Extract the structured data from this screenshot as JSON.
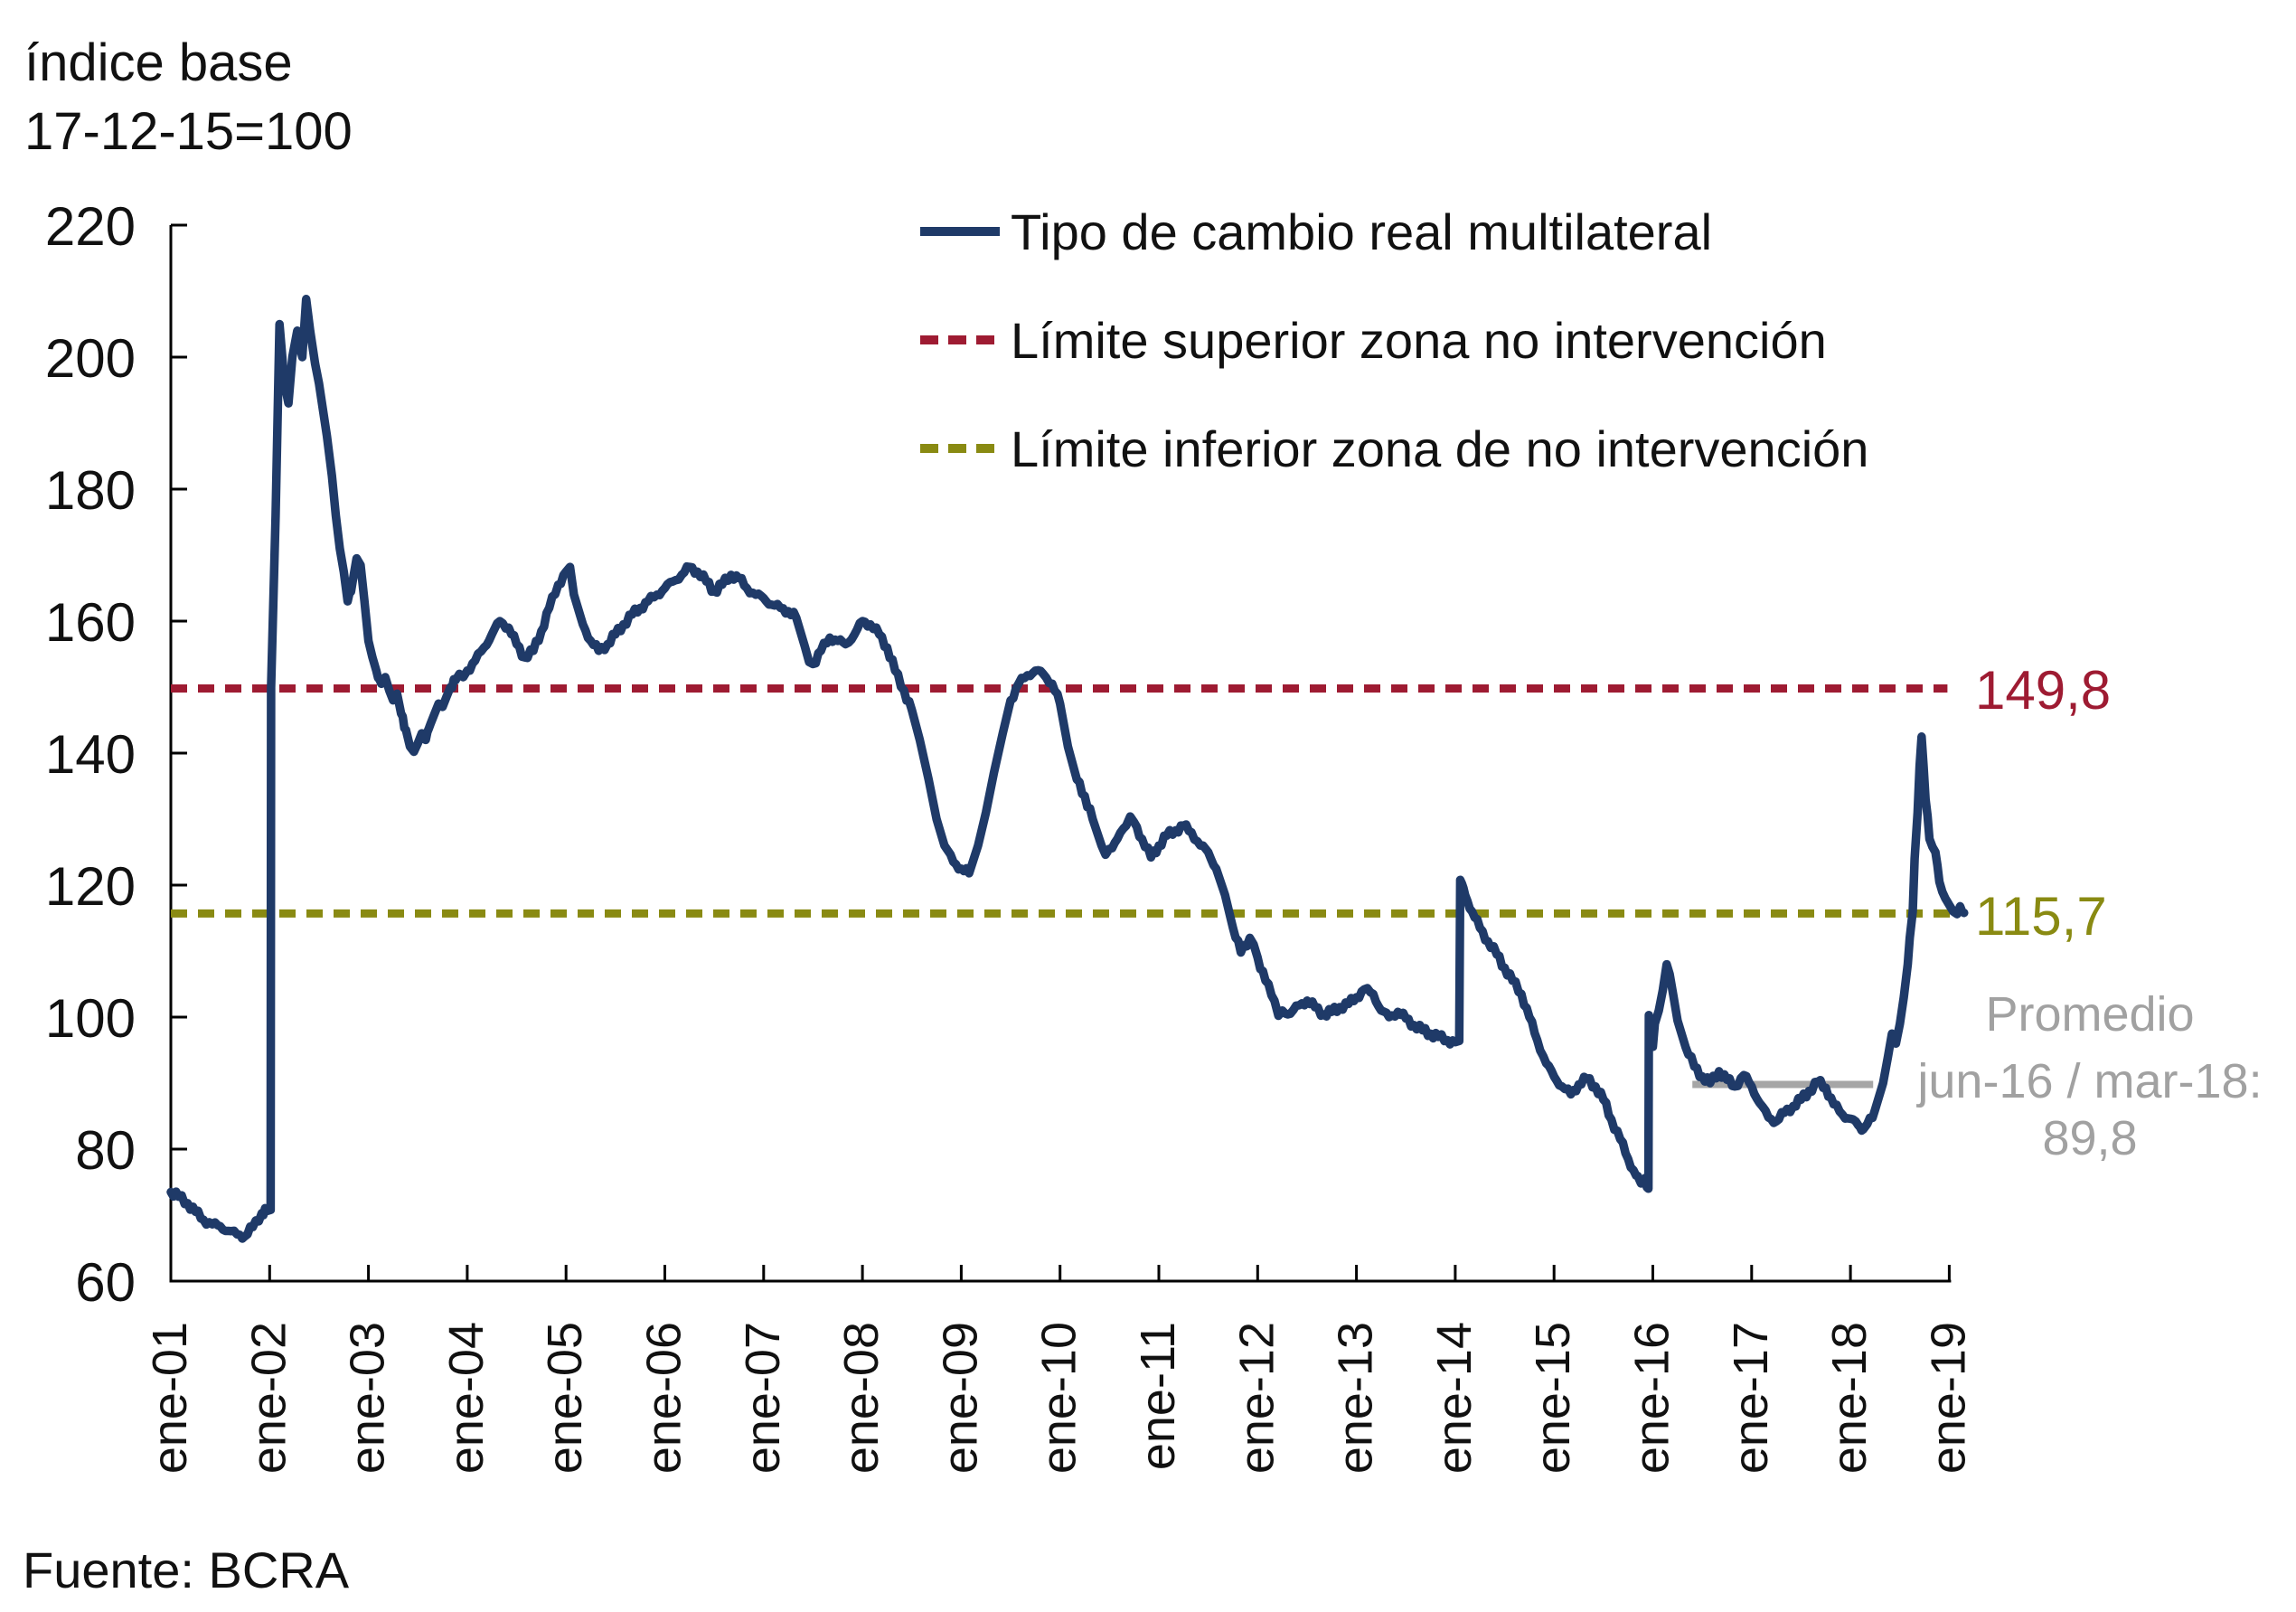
{
  "header": {
    "title_line1": "índice base",
    "title_line2": "17-12-15=100"
  },
  "legend": [
    {
      "label": "Tipo de cambio real multilateral",
      "color": "#1f3a68",
      "style": "solid"
    },
    {
      "label": "Límite superior zona no intervención",
      "color": "#9e1b32",
      "style": "dashed"
    },
    {
      "label": "Límite inferior zona de no intervención",
      "color": "#898a12",
      "style": "dashed"
    }
  ],
  "annotations": {
    "upper_limit_label": "149,8",
    "lower_limit_label": "115,7",
    "average_line1": "Promedio",
    "average_line2": "jun-16 / mar-18:",
    "average_line3": "89,8"
  },
  "source": "Fuente: BCRA",
  "colors": {
    "series": "#1f3a68",
    "upper_limit": "#9e1b32",
    "lower_limit": "#898a12",
    "average": "#a6a6a6",
    "axis": "#000000",
    "annotation_text": "#a1a1a1"
  },
  "chart_data": {
    "type": "line",
    "title": "índice base 17-12-15=100",
    "xlabel": "",
    "ylabel": "",
    "ylim": [
      60,
      220
    ],
    "grid": false,
    "legend_position": "top-center",
    "y_ticks": [
      60,
      80,
      100,
      120,
      140,
      160,
      180,
      200,
      220
    ],
    "x_ticklabels": [
      "ene-01",
      "ene-02",
      "ene-03",
      "ene-04",
      "ene-05",
      "ene-06",
      "ene-07",
      "ene-08",
      "ene-09",
      "ene-10",
      "ene-11",
      "ene-12",
      "ene-13",
      "ene-14",
      "ene-15",
      "ene-16",
      "ene-17",
      "ene-18",
      "ene-19"
    ],
    "x_tick_years": [
      2001,
      2002,
      2003,
      2004,
      2005,
      2006,
      2007,
      2008,
      2009,
      2010,
      2011,
      2012,
      2013,
      2014,
      2015,
      2016,
      2017,
      2018,
      2019
    ],
    "limits": {
      "upper": {
        "label": "Límite superior zona no intervención",
        "value": 149.8
      },
      "lower": {
        "label": "Límite inferior zona de no intervención",
        "value": 115.7
      }
    },
    "average_segment": {
      "label": "Promedio jun-16 / mar-18",
      "value": 89.8,
      "from_year": 2016.4,
      "to_year": 2018.23
    },
    "series": [
      {
        "name": "Tipo de cambio real multilateral",
        "points": [
          [
            2001.0,
            73.5
          ],
          [
            2001.08,
            72.8
          ],
          [
            2001.17,
            71.8
          ],
          [
            2001.25,
            70.5
          ],
          [
            2001.33,
            69.3
          ],
          [
            2001.42,
            68.6
          ],
          [
            2001.5,
            68.3
          ],
          [
            2001.58,
            67.6
          ],
          [
            2001.67,
            67.1
          ],
          [
            2001.75,
            66.8
          ],
          [
            2001.83,
            68.2
          ],
          [
            2001.92,
            70.3
          ],
          [
            2001.97,
            70.6
          ],
          [
            2002.01,
            70.8
          ],
          [
            2002.015,
            150
          ],
          [
            2002.06,
            176
          ],
          [
            2002.1,
            205
          ],
          [
            2002.15,
            196
          ],
          [
            2002.19,
            193
          ],
          [
            2002.23,
            200
          ],
          [
            2002.28,
            204
          ],
          [
            2002.33,
            200
          ],
          [
            2002.37,
            208.8
          ],
          [
            2002.41,
            204
          ],
          [
            2002.46,
            199
          ],
          [
            2002.5,
            196
          ],
          [
            2002.54,
            192
          ],
          [
            2002.58,
            188
          ],
          [
            2002.63,
            182
          ],
          [
            2002.67,
            176
          ],
          [
            2002.71,
            171
          ],
          [
            2002.75,
            167.5
          ],
          [
            2002.79,
            163
          ],
          [
            2002.84,
            166
          ],
          [
            2002.88,
            169.5
          ],
          [
            2002.92,
            168.5
          ],
          [
            2002.96,
            163
          ],
          [
            2003.0,
            157
          ],
          [
            2003.04,
            154.5
          ],
          [
            2003.08,
            152.5
          ],
          [
            2003.13,
            150.5
          ],
          [
            2003.17,
            151.5
          ],
          [
            2003.21,
            149.5
          ],
          [
            2003.25,
            148
          ],
          [
            2003.29,
            149
          ],
          [
            2003.33,
            146
          ],
          [
            2003.38,
            143.5
          ],
          [
            2003.42,
            141
          ],
          [
            2003.46,
            140.2
          ],
          [
            2003.5,
            141.5
          ],
          [
            2003.54,
            143
          ],
          [
            2003.58,
            142
          ],
          [
            2003.63,
            144.5
          ],
          [
            2003.67,
            146
          ],
          [
            2003.71,
            147.5
          ],
          [
            2003.75,
            147
          ],
          [
            2003.79,
            148.5
          ],
          [
            2003.83,
            150
          ],
          [
            2003.88,
            151
          ],
          [
            2003.92,
            152
          ],
          [
            2003.96,
            151.5
          ],
          [
            2004.0,
            152.5
          ],
          [
            2004.08,
            154
          ],
          [
            2004.17,
            156
          ],
          [
            2004.25,
            158
          ],
          [
            2004.33,
            160
          ],
          [
            2004.42,
            159
          ],
          [
            2004.5,
            156.5
          ],
          [
            2004.58,
            154.5
          ],
          [
            2004.67,
            155.5
          ],
          [
            2004.75,
            158.5
          ],
          [
            2004.83,
            162
          ],
          [
            2004.92,
            165.5
          ],
          [
            2005.0,
            167.5
          ],
          [
            2005.04,
            168.2
          ],
          [
            2005.08,
            164
          ],
          [
            2005.17,
            159.5
          ],
          [
            2005.25,
            157
          ],
          [
            2005.33,
            155.5
          ],
          [
            2005.42,
            156.5
          ],
          [
            2005.5,
            158
          ],
          [
            2005.58,
            159.5
          ],
          [
            2005.67,
            161
          ],
          [
            2005.75,
            162
          ],
          [
            2005.83,
            163
          ],
          [
            2005.92,
            164
          ],
          [
            2006.0,
            165
          ],
          [
            2006.08,
            166
          ],
          [
            2006.17,
            167
          ],
          [
            2006.25,
            168.2
          ],
          [
            2006.33,
            167.5
          ],
          [
            2006.42,
            166
          ],
          [
            2006.5,
            164.5
          ],
          [
            2006.58,
            165.5
          ],
          [
            2006.67,
            167
          ],
          [
            2006.75,
            166.5
          ],
          [
            2006.83,
            165
          ],
          [
            2006.92,
            164
          ],
          [
            2007.0,
            163.5
          ],
          [
            2007.08,
            162.5
          ],
          [
            2007.17,
            162
          ],
          [
            2007.25,
            161.5
          ],
          [
            2007.33,
            160.5
          ],
          [
            2007.42,
            156
          ],
          [
            2007.46,
            153.8
          ],
          [
            2007.5,
            153.5
          ],
          [
            2007.58,
            155.5
          ],
          [
            2007.67,
            157.5
          ],
          [
            2007.75,
            157
          ],
          [
            2007.83,
            156.5
          ],
          [
            2007.92,
            158
          ],
          [
            2008.0,
            160
          ],
          [
            2008.08,
            159.5
          ],
          [
            2008.17,
            158
          ],
          [
            2008.25,
            156
          ],
          [
            2008.33,
            152.5
          ],
          [
            2008.42,
            149.5
          ],
          [
            2008.5,
            146.5
          ],
          [
            2008.58,
            142
          ],
          [
            2008.67,
            136
          ],
          [
            2008.75,
            130
          ],
          [
            2008.83,
            126
          ],
          [
            2008.92,
            123.5
          ],
          [
            2009.0,
            122.5
          ],
          [
            2009.08,
            121.8
          ],
          [
            2009.17,
            126
          ],
          [
            2009.25,
            131
          ],
          [
            2009.33,
            137
          ],
          [
            2009.42,
            143
          ],
          [
            2009.5,
            148
          ],
          [
            2009.58,
            150.5
          ],
          [
            2009.67,
            151.8
          ],
          [
            2009.75,
            152.5
          ],
          [
            2009.83,
            152
          ],
          [
            2009.92,
            150.5
          ],
          [
            2010.0,
            147.5
          ],
          [
            2010.08,
            141
          ],
          [
            2010.17,
            136
          ],
          [
            2010.25,
            133.5
          ],
          [
            2010.33,
            130
          ],
          [
            2010.42,
            126
          ],
          [
            2010.46,
            124.6
          ],
          [
            2010.5,
            125.5
          ],
          [
            2010.58,
            127
          ],
          [
            2010.67,
            129
          ],
          [
            2010.71,
            130.4
          ],
          [
            2010.75,
            129.5
          ],
          [
            2010.83,
            127
          ],
          [
            2010.92,
            124.2
          ],
          [
            2011.0,
            126
          ],
          [
            2011.08,
            127.5
          ],
          [
            2011.17,
            128.3
          ],
          [
            2011.25,
            129
          ],
          [
            2011.33,
            128
          ],
          [
            2011.42,
            126
          ],
          [
            2011.5,
            125
          ],
          [
            2011.58,
            122.5
          ],
          [
            2011.67,
            118.5
          ],
          [
            2011.75,
            113.5
          ],
          [
            2011.83,
            109.8
          ],
          [
            2011.92,
            112
          ],
          [
            2011.96,
            111
          ],
          [
            2012.0,
            109
          ],
          [
            2012.08,
            105.5
          ],
          [
            2012.17,
            102.5
          ],
          [
            2012.21,
            100.2
          ],
          [
            2012.25,
            101
          ],
          [
            2012.33,
            100.5
          ],
          [
            2012.42,
            101.8
          ],
          [
            2012.5,
            102.5
          ],
          [
            2012.58,
            101.5
          ],
          [
            2012.67,
            100.4
          ],
          [
            2012.75,
            100.8
          ],
          [
            2012.83,
            101.5
          ],
          [
            2012.92,
            102
          ],
          [
            2013.0,
            103
          ],
          [
            2013.08,
            104.2
          ],
          [
            2013.17,
            103.5
          ],
          [
            2013.25,
            101
          ],
          [
            2013.33,
            100
          ],
          [
            2013.42,
            100.8
          ],
          [
            2013.5,
            99.8
          ],
          [
            2013.58,
            98.8
          ],
          [
            2013.67,
            98
          ],
          [
            2013.75,
            97.5
          ],
          [
            2013.83,
            97
          ],
          [
            2013.92,
            96.5
          ],
          [
            2014.0,
            96.2
          ],
          [
            2014.04,
            96.4
          ],
          [
            2014.05,
            120.8
          ],
          [
            2014.1,
            118.5
          ],
          [
            2014.17,
            116
          ],
          [
            2014.25,
            113.5
          ],
          [
            2014.33,
            111.5
          ],
          [
            2014.42,
            109.5
          ],
          [
            2014.5,
            107.5
          ],
          [
            2014.58,
            105.5
          ],
          [
            2014.67,
            103.5
          ],
          [
            2014.75,
            100
          ],
          [
            2014.83,
            96.5
          ],
          [
            2014.92,
            93
          ],
          [
            2015.0,
            91
          ],
          [
            2015.08,
            89.5
          ],
          [
            2015.17,
            88.3
          ],
          [
            2015.25,
            89.8
          ],
          [
            2015.33,
            90.7
          ],
          [
            2015.42,
            89.5
          ],
          [
            2015.5,
            87.5
          ],
          [
            2015.58,
            84.5
          ],
          [
            2015.67,
            81.5
          ],
          [
            2015.75,
            78.5
          ],
          [
            2015.83,
            76
          ],
          [
            2015.88,
            74.8
          ],
          [
            2015.92,
            75.6
          ],
          [
            2015.94,
            74.2
          ],
          [
            2015.955,
            74.0
          ],
          [
            2015.96,
            100.3
          ],
          [
            2015.98,
            97
          ],
          [
            2016.0,
            95.5
          ],
          [
            2016.02,
            99
          ],
          [
            2016.06,
            101
          ],
          [
            2016.1,
            104
          ],
          [
            2016.14,
            108
          ],
          [
            2016.17,
            106.5
          ],
          [
            2016.21,
            103
          ],
          [
            2016.25,
            99.5
          ],
          [
            2016.33,
            95.5
          ],
          [
            2016.42,
            92.5
          ],
          [
            2016.5,
            91
          ],
          [
            2016.58,
            90
          ],
          [
            2016.67,
            91.8
          ],
          [
            2016.75,
            90.5
          ],
          [
            2016.83,
            89.5
          ],
          [
            2016.92,
            91.2
          ],
          [
            2017.0,
            89.5
          ],
          [
            2017.08,
            87
          ],
          [
            2017.17,
            84.8
          ],
          [
            2017.25,
            84.2
          ],
          [
            2017.33,
            85.5
          ],
          [
            2017.42,
            86.5
          ],
          [
            2017.5,
            87.5
          ],
          [
            2017.58,
            88.8
          ],
          [
            2017.67,
            90.2
          ],
          [
            2017.75,
            89.3
          ],
          [
            2017.83,
            86.8
          ],
          [
            2017.92,
            85.2
          ],
          [
            2018.0,
            84.6
          ],
          [
            2018.08,
            83.6
          ],
          [
            2018.13,
            83
          ],
          [
            2018.17,
            83.8
          ],
          [
            2018.25,
            86
          ],
          [
            2018.33,
            90
          ],
          [
            2018.38,
            94
          ],
          [
            2018.42,
            97.5
          ],
          [
            2018.46,
            96
          ],
          [
            2018.5,
            99
          ],
          [
            2018.54,
            103
          ],
          [
            2018.58,
            108
          ],
          [
            2018.6,
            112
          ],
          [
            2018.63,
            116
          ],
          [
            2018.65,
            124
          ],
          [
            2018.68,
            131
          ],
          [
            2018.7,
            138
          ],
          [
            2018.72,
            142.5
          ],
          [
            2018.74,
            138
          ],
          [
            2018.76,
            133
          ],
          [
            2018.78,
            130.5
          ],
          [
            2018.8,
            127
          ],
          [
            2018.83,
            125.8
          ],
          [
            2018.86,
            125
          ],
          [
            2018.88,
            123
          ],
          [
            2018.9,
            120.5
          ],
          [
            2018.93,
            119
          ],
          [
            2018.96,
            118
          ],
          [
            2019.0,
            117
          ],
          [
            2019.04,
            116
          ],
          [
            2019.08,
            115.6
          ],
          [
            2019.11,
            116.8
          ],
          [
            2019.13,
            116
          ],
          [
            2019.15,
            115.8
          ]
        ]
      }
    ]
  }
}
